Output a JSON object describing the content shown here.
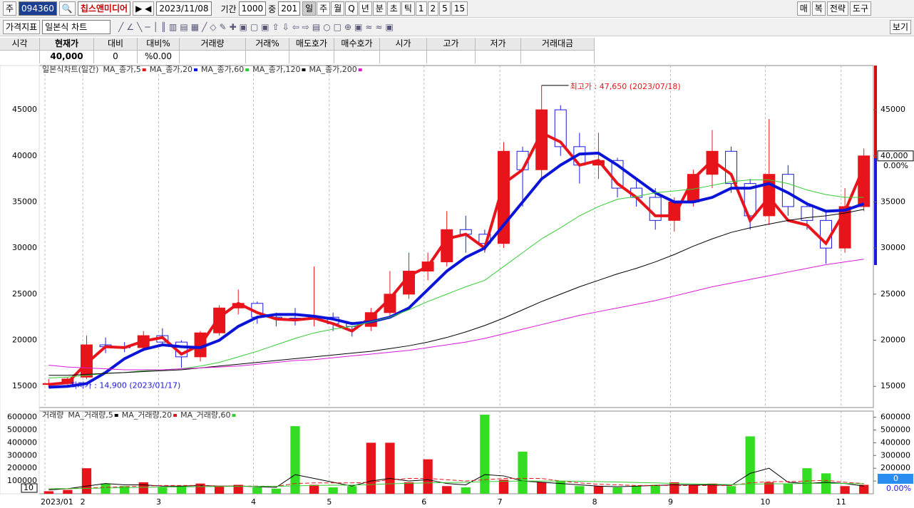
{
  "toolbar": {
    "code_label": "주",
    "code": "094360",
    "name": "칩스앤미디어",
    "date": "2023/11/08",
    "period_label": "기간",
    "period": "1000",
    "zoom_label": "중",
    "zoom": "201",
    "intervals": [
      "일",
      "주",
      "월",
      "Q",
      "년",
      "분",
      "초",
      "틱",
      "1",
      "2",
      "5",
      "15"
    ],
    "right_buttons": [
      "매",
      "복",
      "전략",
      "도구"
    ],
    "indicator": "가격지표",
    "chart_style": "일본식 차트",
    "view": "보기"
  },
  "info_table": {
    "headers": [
      "시각",
      "현재가",
      "대비",
      "대비%",
      "거래량",
      "거래%",
      "매도호가",
      "매수호가",
      "시가",
      "고가",
      "저가",
      "거래대금"
    ],
    "values": [
      "40,000",
      "0",
      "%0.00"
    ]
  },
  "chart_data": [
    {
      "type": "candlestick",
      "title": "일본식차트(일간)",
      "categories": [
        "2023/01",
        null,
        "2",
        null,
        null,
        null,
        "3",
        null,
        null,
        null,
        null,
        "4",
        null,
        null,
        null,
        "5",
        null,
        null,
        null,
        null,
        "6",
        null,
        null,
        null,
        "7",
        null,
        null,
        null,
        null,
        "8",
        null,
        null,
        null,
        "9",
        null,
        null,
        null,
        null,
        "10",
        null,
        null,
        null,
        "11",
        null
      ],
      "open": [
        15200,
        15300,
        16000,
        19500,
        19300,
        19200,
        20500,
        19800,
        18200,
        20800,
        23500,
        24000,
        22500,
        22400,
        22300,
        22500,
        21800,
        21500,
        23000,
        25000,
        27500,
        28500,
        32000,
        31500,
        30500,
        40500,
        38500,
        45000,
        41000,
        39000,
        39500,
        36500,
        35500,
        33000,
        35000,
        38000,
        40500,
        37000,
        33500,
        38000,
        34500,
        33000,
        30000,
        34500
      ],
      "high": [
        15800,
        16000,
        20500,
        20300,
        19800,
        21000,
        21300,
        20000,
        21000,
        23800,
        25500,
        24200,
        23000,
        23500,
        28000,
        23000,
        22000,
        23500,
        27500,
        29500,
        29500,
        34000,
        33500,
        32000,
        41500,
        41000,
        47650,
        45500,
        42500,
        42500,
        39800,
        37500,
        36500,
        35500,
        38500,
        42800,
        41000,
        37500,
        44000,
        39000,
        35000,
        34000,
        36500,
        40800
      ],
      "low": [
        14900,
        15000,
        15800,
        18600,
        18700,
        18800,
        19500,
        17000,
        17700,
        20500,
        22800,
        21800,
        21500,
        21600,
        21500,
        21000,
        20400,
        21000,
        22500,
        24500,
        26500,
        28000,
        29500,
        29500,
        30000,
        34500,
        37500,
        40000,
        37000,
        37500,
        35500,
        34500,
        32000,
        31800,
        34500,
        36500,
        36000,
        32000,
        32500,
        33500,
        32000,
        28300,
        29500,
        34000
      ],
      "close": [
        15300,
        15800,
        19500,
        19300,
        19200,
        20500,
        19800,
        18200,
        20800,
        23500,
        24000,
        22500,
        22400,
        22300,
        22500,
        21800,
        21500,
        23000,
        25000,
        27500,
        28500,
        32000,
        31500,
        30500,
        40500,
        38500,
        45000,
        41000,
        39000,
        39500,
        36500,
        35500,
        33000,
        35000,
        38000,
        40500,
        37000,
        33500,
        38000,
        34500,
        33000,
        30000,
        34500,
        40000
      ],
      "up_color": "#e8141b",
      "down_color": "#1a1adc",
      "series": [
        {
          "name": "MA_종가,5",
          "color": "#e8141b",
          "width": 4,
          "values": [
            15200,
            15400,
            17500,
            19300,
            19200,
            19900,
            20300,
            18500,
            19500,
            22500,
            24000,
            23000,
            22300,
            22200,
            22400,
            21800,
            21000,
            22500,
            24500,
            27000,
            28000,
            31000,
            31500,
            30000,
            37000,
            38500,
            42500,
            41500,
            39000,
            39500,
            37000,
            35500,
            33500,
            33500,
            37500,
            39500,
            38000,
            33000,
            35500,
            33000,
            32500,
            30500,
            34000,
            38800
          ]
        },
        {
          "name": "MA_종가,20",
          "color": "#0a14d8",
          "width": 4,
          "values": [
            14900,
            15000,
            15300,
            16500,
            18000,
            19000,
            19500,
            19300,
            19200,
            20000,
            21500,
            22500,
            22800,
            22800,
            22600,
            22300,
            21800,
            22000,
            22500,
            23500,
            25500,
            27500,
            29000,
            30000,
            32500,
            35000,
            37500,
            39000,
            40200,
            40300,
            39000,
            37500,
            36000,
            35000,
            35000,
            35500,
            36500,
            36500,
            37000,
            36000,
            34800,
            34000,
            34100,
            34800
          ]
        },
        {
          "name": "MA_종가,60",
          "color": "#33cc33",
          "width": 1,
          "values": [
            15900,
            16000,
            16200,
            16400,
            16500,
            16700,
            16800,
            16900,
            17200,
            17600,
            18200,
            18800,
            19500,
            20200,
            20800,
            21200,
            21500,
            22000,
            22500,
            23300,
            24200,
            25000,
            25800,
            26500,
            28000,
            29500,
            31000,
            32200,
            33500,
            34500,
            35300,
            35600,
            36000,
            36200,
            36400,
            36800,
            37200,
            37400,
            37400,
            37000,
            36300,
            35800,
            35500,
            35500
          ]
        },
        {
          "name": "MA_종가,120",
          "color": "#000000",
          "width": 1,
          "values": [
            16200,
            16200,
            16300,
            16400,
            16500,
            16600,
            16700,
            16800,
            17000,
            17200,
            17400,
            17600,
            17800,
            18000,
            18200,
            18400,
            18600,
            18800,
            19100,
            19400,
            19800,
            20300,
            20900,
            21600,
            22400,
            23300,
            24200,
            25000,
            25800,
            26500,
            27200,
            27800,
            28500,
            29300,
            30200,
            31000,
            31700,
            32200,
            32600,
            33000,
            33300,
            33500,
            33800,
            34200
          ]
        },
        {
          "name": "MA_종가,200",
          "color": "#d81ad8",
          "width": 1,
          "values": [
            17300,
            17100,
            17000,
            16900,
            16800,
            16800,
            16800,
            16900,
            17000,
            17100,
            17200,
            17400,
            17600,
            17800,
            17900,
            18100,
            18300,
            18500,
            18700,
            18900,
            19200,
            19500,
            19800,
            20200,
            20700,
            21200,
            21700,
            22200,
            22700,
            23100,
            23500,
            23900,
            24300,
            24800,
            25300,
            25800,
            26200,
            26600,
            27000,
            27400,
            27800,
            28200,
            28500,
            28800
          ]
        }
      ],
      "ylim": [
        12700,
        49800
      ],
      "yticks": [
        15000,
        20000,
        25000,
        30000,
        35000,
        40000,
        45000
      ],
      "grid": "x",
      "annotations": [
        "최고가 : 47,650 (2023/07/18)",
        "최저가 : 14,900 (2023/01/17)"
      ],
      "current_price": "40,000",
      "current_change": "0.00%"
    },
    {
      "type": "bar",
      "title": "거래량",
      "scale_box": "10",
      "values": [
        20000,
        30000,
        200000,
        80000,
        60000,
        90000,
        50000,
        60000,
        80000,
        60000,
        70000,
        50000,
        40000,
        530000,
        70000,
        50000,
        60000,
        400000,
        400000,
        90000,
        270000,
        60000,
        50000,
        620000,
        110000,
        330000,
        90000,
        100000,
        60000,
        60000,
        50000,
        60000,
        70000,
        90000,
        70000,
        80000,
        60000,
        450000,
        90000,
        80000,
        200000,
        160000,
        60000,
        70000
      ],
      "up_color": "#e8141b",
      "down_color": "#33dd22",
      "series": [
        {
          "name": "MA_거래량,5",
          "color": "#000000",
          "values": [
            30000,
            40000,
            60000,
            80000,
            70000,
            70000,
            60000,
            60000,
            65000,
            60000,
            60000,
            55000,
            50000,
            150000,
            120000,
            90000,
            60000,
            100000,
            120000,
            100000,
            110000,
            80000,
            70000,
            150000,
            140000,
            100000,
            90000,
            80000,
            70000,
            60000,
            55000,
            60000,
            65000,
            70000,
            70000,
            70000,
            65000,
            160000,
            200000,
            90000,
            80000,
            90000,
            80000,
            60000
          ]
        },
        {
          "name": "MA_거래량,20",
          "color": "#e8141b",
          "values": [
            40000,
            40000,
            45000,
            50000,
            55000,
            60000,
            65000,
            65000,
            65000,
            60000,
            60000,
            60000,
            58000,
            80000,
            85000,
            85000,
            85000,
            90000,
            110000,
            120000,
            120000,
            110000,
            100000,
            110000,
            120000,
            120000,
            120000,
            100000,
            85000,
            75000,
            70000,
            65000,
            65000,
            65000,
            65000,
            65000,
            65000,
            85000,
            95000,
            95000,
            100000,
            105000,
            90000,
            80000
          ]
        },
        {
          "name": "MA_거래량,60",
          "color": "#33cc33",
          "values": [
            40000,
            40000,
            42000,
            45000,
            48000,
            50000,
            52000,
            54000,
            56000,
            57000,
            58000,
            58000,
            58000,
            62000,
            65000,
            67000,
            68000,
            72000,
            78000,
            82000,
            85000,
            88000,
            90000,
            95000,
            98000,
            100000,
            100000,
            100000,
            98000,
            95000,
            92000,
            88000,
            85000,
            80000,
            78000,
            75000,
            72000,
            75000,
            78000,
            78000,
            80000,
            82000,
            80000,
            78000
          ]
        }
      ],
      "ylim": [
        0,
        648000
      ],
      "yticks": [
        100000,
        200000,
        300000,
        400000,
        500000,
        600000
      ],
      "current_volume": "0",
      "current_change": "0.00%"
    }
  ]
}
